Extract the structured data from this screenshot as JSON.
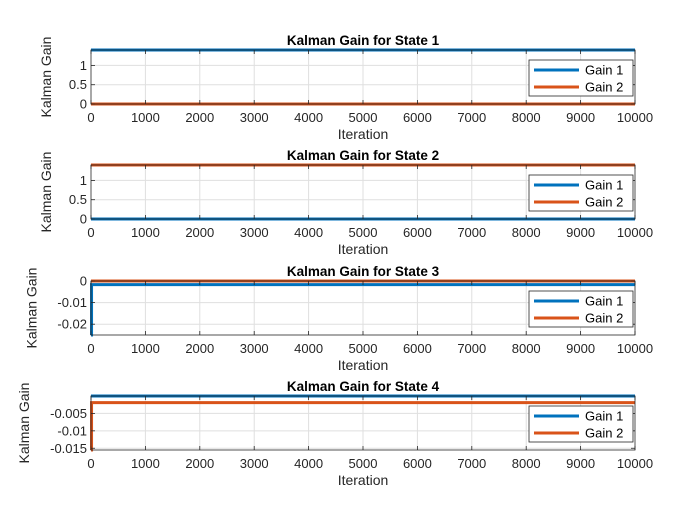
{
  "chart_data": [
    {
      "type": "line",
      "title": "Kalman Gain for State 1",
      "xlabel": "Iteration",
      "ylabel": "Kalman Gain",
      "xlim": [
        0,
        10000
      ],
      "ylim": [
        0,
        1.4
      ],
      "xticks": [
        0,
        1000,
        2000,
        3000,
        4000,
        5000,
        6000,
        7000,
        8000,
        9000,
        10000
      ],
      "yticks": [
        0,
        0.5,
        1
      ],
      "ytick_labels": [
        "0",
        "0.5",
        "1"
      ],
      "grid": true,
      "legend_position": "top-right",
      "series": [
        {
          "name": "Gain 1",
          "color": "#0072BD",
          "x": [
            0,
            10000
          ],
          "y": [
            1.4,
            1.4
          ]
        },
        {
          "name": "Gain 2",
          "color": "#D95319",
          "x": [
            0,
            10000
          ],
          "y": [
            0,
            0
          ]
        }
      ]
    },
    {
      "type": "line",
      "title": "Kalman Gain for State 2",
      "xlabel": "Iteration",
      "ylabel": "Kalman Gain",
      "xlim": [
        0,
        10000
      ],
      "ylim": [
        0,
        1.4
      ],
      "xticks": [
        0,
        1000,
        2000,
        3000,
        4000,
        5000,
        6000,
        7000,
        8000,
        9000,
        10000
      ],
      "yticks": [
        0,
        0.5,
        1
      ],
      "ytick_labels": [
        "0",
        "0.5",
        "1"
      ],
      "grid": true,
      "legend_position": "top-right",
      "series": [
        {
          "name": "Gain 1",
          "color": "#0072BD",
          "x": [
            0,
            10000
          ],
          "y": [
            0,
            0
          ]
        },
        {
          "name": "Gain 2",
          "color": "#D95319",
          "x": [
            0,
            10000
          ],
          "y": [
            1.4,
            1.4
          ]
        }
      ]
    },
    {
      "type": "line",
      "title": "Kalman Gain for State 3",
      "xlabel": "Iteration",
      "ylabel": "Kalman Gain",
      "xlim": [
        0,
        10000
      ],
      "ylim": [
        -0.025,
        0
      ],
      "xticks": [
        0,
        1000,
        2000,
        3000,
        4000,
        5000,
        6000,
        7000,
        8000,
        9000,
        10000
      ],
      "yticks": [
        -0.02,
        -0.01,
        0
      ],
      "ytick_labels": [
        "-0.02",
        "-0.01",
        "0"
      ],
      "grid": true,
      "legend_position": "top-right",
      "series": [
        {
          "name": "Gain 1",
          "color": "#0072BD",
          "x": [
            0,
            10,
            10,
            10000
          ],
          "y": [
            -0.025,
            -0.025,
            -0.0017,
            -0.0017
          ]
        },
        {
          "name": "Gain 2",
          "color": "#D95319",
          "x": [
            0,
            10000
          ],
          "y": [
            0,
            0
          ]
        }
      ]
    },
    {
      "type": "line",
      "title": "Kalman Gain for State 4",
      "xlabel": "Iteration",
      "ylabel": "Kalman Gain",
      "xlim": [
        0,
        10000
      ],
      "ylim": [
        -0.0155,
        0
      ],
      "xticks": [
        0,
        1000,
        2000,
        3000,
        4000,
        5000,
        6000,
        7000,
        8000,
        9000,
        10000
      ],
      "yticks": [
        -0.015,
        -0.01,
        -0.005
      ],
      "ytick_labels": [
        "-0.015",
        "-0.01",
        "-0.005"
      ],
      "grid": true,
      "legend_position": "top-right",
      "series": [
        {
          "name": "Gain 1",
          "color": "#0072BD",
          "x": [
            0,
            10000
          ],
          "y": [
            0,
            0
          ]
        },
        {
          "name": "Gain 2",
          "color": "#D95319",
          "x": [
            0,
            10,
            10,
            10000
          ],
          "y": [
            -0.0155,
            -0.0155,
            -0.0019,
            -0.0019
          ]
        }
      ]
    }
  ]
}
